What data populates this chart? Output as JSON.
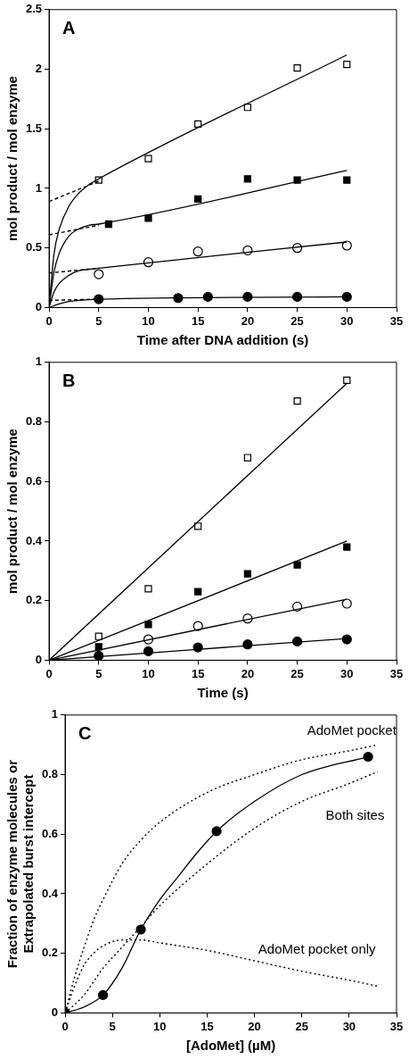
{
  "chart_data": [
    {
      "type": "scatter",
      "xlabel": "Time after DNA addition (s)",
      "ylabel": "mol product / mol enzyme",
      "xlim": [
        0,
        35
      ],
      "xticks": [
        0,
        5,
        10,
        15,
        20,
        25,
        30,
        35
      ],
      "ylim": [
        0,
        2.5
      ],
      "yticks": [
        0,
        0.5,
        1,
        1.5,
        2,
        2.5
      ],
      "grid": false,
      "annotations": [
        "A"
      ],
      "series": [
        {
          "type": "line",
          "color": "#000000",
          "x": [
            0,
            0.5,
            1,
            2,
            3,
            4,
            5,
            30
          ],
          "values": [
            0,
            0.45,
            0.65,
            0.85,
            0.96,
            1.03,
            1.08,
            2.12
          ]
        },
        {
          "type": "line",
          "color": "#000000",
          "x": [
            0,
            0.5,
            1,
            2,
            3,
            4,
            5,
            30
          ],
          "values": [
            0,
            0.3,
            0.45,
            0.6,
            0.66,
            0.69,
            0.7,
            1.15
          ]
        },
        {
          "type": "line",
          "color": "#000000",
          "x": [
            0,
            0.5,
            1,
            2,
            3,
            4,
            5,
            30
          ],
          "values": [
            0,
            0.13,
            0.2,
            0.27,
            0.31,
            0.32,
            0.33,
            0.55
          ]
        },
        {
          "type": "line",
          "color": "#000000",
          "x": [
            0,
            1,
            2,
            3,
            5,
            30
          ],
          "values": [
            0,
            0.03,
            0.05,
            0.06,
            0.07,
            0.09
          ]
        },
        {
          "type": "line",
          "line_style": "dashed",
          "color": "#000000",
          "x": [
            0,
            5
          ],
          "values": [
            0.89,
            1.06
          ]
        },
        {
          "type": "line",
          "line_style": "dashed",
          "color": "#000000",
          "x": [
            0,
            5
          ],
          "values": [
            0.61,
            0.69
          ]
        },
        {
          "type": "line",
          "line_style": "dashed",
          "color": "#000000",
          "x": [
            0,
            5
          ],
          "values": [
            0.29,
            0.33
          ]
        },
        {
          "type": "line",
          "line_style": "dashed",
          "color": "#000000",
          "x": [
            0,
            5
          ],
          "values": [
            0.06,
            0.07
          ]
        },
        {
          "marker": "square",
          "color": "#ffffff",
          "x": [
            5,
            10,
            15,
            20,
            25,
            30
          ],
          "values": [
            1.07,
            1.25,
            1.54,
            1.68,
            2.01,
            2.04
          ]
        },
        {
          "marker": "square",
          "color": "#000000",
          "x": [
            6,
            10,
            15,
            20,
            25,
            30
          ],
          "values": [
            0.7,
            0.75,
            0.91,
            1.08,
            1.07,
            1.07
          ]
        },
        {
          "marker": "circle",
          "color": "#ffffff",
          "x": [
            5,
            10,
            15,
            20,
            25,
            30
          ],
          "values": [
            0.28,
            0.38,
            0.47,
            0.48,
            0.5,
            0.52
          ]
        },
        {
          "marker": "circle",
          "color": "#000000",
          "x": [
            5,
            13,
            16,
            20,
            25,
            30
          ],
          "values": [
            0.07,
            0.08,
            0.09,
            0.09,
            0.09,
            0.09
          ]
        }
      ]
    },
    {
      "type": "scatter",
      "xlabel": "Time (s)",
      "ylabel": "mol product / mol enzyme",
      "xlim": [
        0,
        35
      ],
      "xticks": [
        0,
        5,
        10,
        15,
        20,
        25,
        30,
        35
      ],
      "ylim": [
        0,
        1
      ],
      "yticks": [
        0,
        0.2,
        0.4,
        0.6,
        0.8,
        1
      ],
      "grid": false,
      "annotations": [
        "B"
      ],
      "series": [
        {
          "type": "line",
          "color": "#000000",
          "x": [
            0,
            30
          ],
          "values": [
            0,
            0.93
          ]
        },
        {
          "type": "line",
          "color": "#000000",
          "x": [
            0,
            30
          ],
          "values": [
            0,
            0.4
          ]
        },
        {
          "type": "line",
          "color": "#000000",
          "x": [
            0,
            30
          ],
          "values": [
            0,
            0.205
          ]
        },
        {
          "type": "line",
          "color": "#000000",
          "x": [
            0,
            30
          ],
          "values": [
            0,
            0.073
          ]
        },
        {
          "marker": "square",
          "color": "#ffffff",
          "x": [
            5,
            10,
            15,
            20,
            25,
            30
          ],
          "values": [
            0.08,
            0.24,
            0.45,
            0.68,
            0.87,
            0.94
          ]
        },
        {
          "marker": "square",
          "color": "#000000",
          "x": [
            5,
            10,
            15,
            20,
            25,
            30
          ],
          "values": [
            0.045,
            0.12,
            0.23,
            0.29,
            0.32,
            0.38
          ]
        },
        {
          "marker": "circle",
          "color": "#ffffff",
          "x": [
            10,
            15,
            20,
            25,
            30
          ],
          "values": [
            0.07,
            0.115,
            0.14,
            0.18,
            0.19
          ]
        },
        {
          "marker": "circle",
          "color": "#000000",
          "x": [
            5,
            10,
            15,
            20,
            25,
            30
          ],
          "values": [
            0.015,
            0.03,
            0.043,
            0.053,
            0.063,
            0.07
          ]
        }
      ]
    },
    {
      "type": "scatter",
      "xlabel": "[AdoMet] (µM)",
      "ylabel": "Fraction of enzyme molecules or\nExtrapolated burst intercept",
      "xlim": [
        0,
        35
      ],
      "xticks": [
        0,
        5,
        10,
        15,
        20,
        25,
        30,
        35
      ],
      "ylim": [
        0,
        1
      ],
      "yticks": [
        0,
        0.2,
        0.4,
        0.6,
        0.8,
        1
      ],
      "grid": false,
      "annotations": [
        "C",
        "AdoMet pocket",
        "Both sites",
        "AdoMet pocket only"
      ],
      "series": [
        {
          "type": "line",
          "color": "#000000",
          "x": [
            0,
            2,
            4,
            6,
            8,
            10,
            12,
            14,
            16,
            20,
            25,
            32
          ],
          "values": [
            0,
            0.02,
            0.06,
            0.15,
            0.28,
            0.38,
            0.46,
            0.54,
            0.61,
            0.71,
            0.8,
            0.86
          ]
        },
        {
          "type": "line",
          "line_style": "dotted",
          "color": "#000000",
          "x": [
            0,
            1,
            2,
            3,
            4,
            6,
            8,
            10,
            15,
            20,
            25,
            30,
            33
          ],
          "values": [
            0,
            0.12,
            0.22,
            0.31,
            0.38,
            0.5,
            0.58,
            0.64,
            0.74,
            0.8,
            0.85,
            0.88,
            0.9
          ]
        },
        {
          "type": "line",
          "line_style": "dotted",
          "color": "#000000",
          "x": [
            0,
            2,
            4,
            6,
            8,
            10,
            15,
            20,
            25,
            30,
            33
          ],
          "values": [
            0,
            0.06,
            0.15,
            0.22,
            0.29,
            0.36,
            0.5,
            0.62,
            0.71,
            0.77,
            0.81
          ]
        },
        {
          "type": "line",
          "line_style": "dotted",
          "color": "#000000",
          "x": [
            0,
            1,
            2,
            3,
            4,
            6,
            8,
            10,
            15,
            20,
            25,
            30,
            33
          ],
          "values": [
            0,
            0.09,
            0.16,
            0.2,
            0.225,
            0.245,
            0.245,
            0.235,
            0.21,
            0.175,
            0.14,
            0.11,
            0.09
          ]
        },
        {
          "marker": "circle",
          "color": "#000000",
          "x": [
            0,
            4,
            8,
            16,
            32
          ],
          "values": [
            0,
            0.06,
            0.28,
            0.61,
            0.86
          ]
        }
      ]
    }
  ]
}
